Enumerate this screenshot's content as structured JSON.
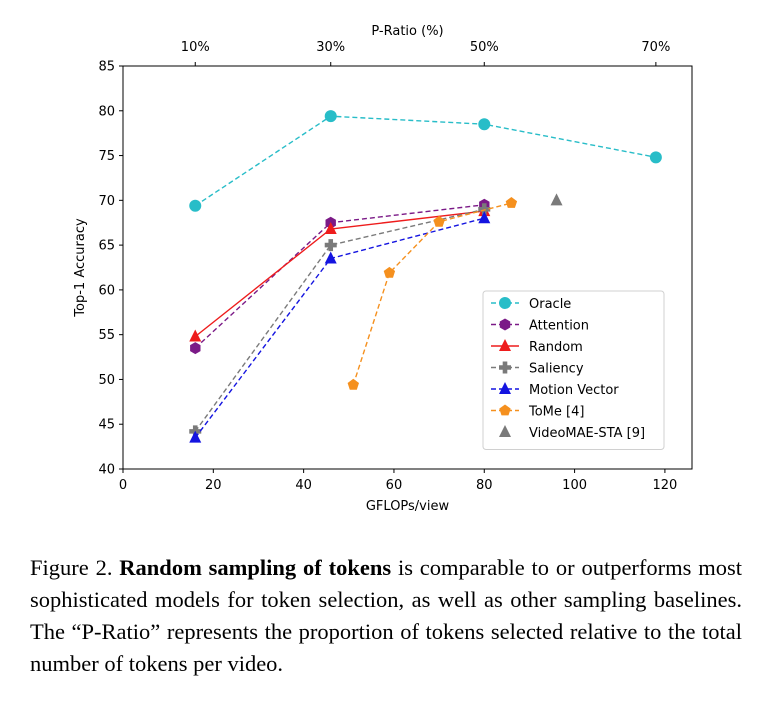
{
  "chart_data": {
    "type": "line",
    "title": "",
    "xlabel": "GFLOPs/view",
    "ylabel": "Top-1 Accuracy",
    "top_xlabel": "P-Ratio (%)",
    "xlim": [
      0,
      126
    ],
    "ylim": [
      40,
      85
    ],
    "xticks": [
      0,
      20,
      40,
      60,
      80,
      100,
      120
    ],
    "yticks": [
      40,
      45,
      50,
      55,
      60,
      65,
      70,
      75,
      80,
      85
    ],
    "top_ticks": [
      {
        "x": 16,
        "label": "10%"
      },
      {
        "x": 46,
        "label": "30%"
      },
      {
        "x": 80,
        "label": "50%"
      },
      {
        "x": 118,
        "label": "70%"
      }
    ],
    "legend_position": "lower-right",
    "series": [
      {
        "name": "Oracle",
        "color": "#28bdc8",
        "marker": "circle",
        "line": "dashed",
        "x": [
          16,
          46,
          80,
          118
        ],
        "y": [
          69.4,
          79.4,
          78.5,
          74.8
        ]
      },
      {
        "name": "Attention",
        "color": "#7b1a87",
        "marker": "hexagon",
        "line": "dashed",
        "x": [
          16,
          46,
          80
        ],
        "y": [
          53.5,
          67.5,
          69.5
        ]
      },
      {
        "name": "Random",
        "color": "#ee1c1c",
        "marker": "triangle",
        "line": "solid",
        "x": [
          16,
          46,
          80
        ],
        "y": [
          54.8,
          66.8,
          68.8
        ]
      },
      {
        "name": "Saliency",
        "color": "#7a7a7a",
        "marker": "plus",
        "line": "dashed",
        "x": [
          16,
          46,
          80
        ],
        "y": [
          44.2,
          65.0,
          69.0
        ]
      },
      {
        "name": "Motion Vector",
        "color": "#1414e0",
        "marker": "triangle",
        "line": "dashed",
        "x": [
          16,
          46,
          80
        ],
        "y": [
          43.5,
          63.5,
          68.0
        ]
      },
      {
        "name": "ToMe [4]",
        "color": "#f5901e",
        "marker": "pentagon",
        "line": "dashed",
        "x": [
          51,
          59,
          70,
          86
        ],
        "y": [
          49.4,
          61.9,
          67.6,
          69.7
        ]
      },
      {
        "name": "VideoMAE-STA [9]",
        "color": "#7a7a7a",
        "marker": "triangle",
        "line": "none",
        "x": [
          96
        ],
        "y": [
          70.0
        ]
      }
    ]
  },
  "caption": {
    "prefix": "Figure 2.",
    "bold": "Random sampling of tokens",
    "text": "is comparable to or outperforms most sophisticated models for token selection, as well as other sampling baselines. The “P-Ratio” represents the proportion of tokens selected relative to the total number of tokens per video."
  }
}
